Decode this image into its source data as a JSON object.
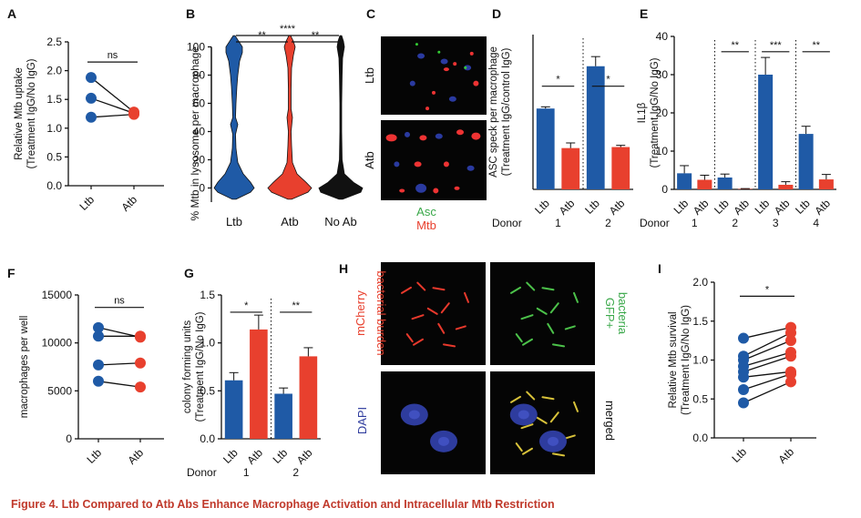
{
  "caption": "Figure 4. Ltb Compared to Atb Abs Enhance Macrophage Activation and Intracellular Mtb Restriction",
  "colors": {
    "ltb": "#1f5aa6",
    "atb": "#e8402e",
    "noab": "#111111",
    "green": "#3aa84a",
    "red": "#e8402e",
    "blue": "#2f3c9e"
  },
  "chart_data": [
    {
      "panel": "A",
      "type": "scatter",
      "ylabel": [
        "Relative Mtb uptake",
        "(Treatment IgG/No IgG)"
      ],
      "categories": [
        "Ltb",
        "Atb"
      ],
      "ylim": [
        0,
        2.5
      ],
      "yticks": [
        "0.0",
        "0.5",
        "1.0",
        "1.5",
        "2.0",
        "2.5"
      ],
      "pairs": [
        [
          1.88,
          1.28
        ],
        [
          1.52,
          1.26
        ],
        [
          1.19,
          1.24
        ]
      ],
      "significance": [
        {
          "label": "ns",
          "from": 0,
          "to": 1,
          "y": 2.15
        }
      ]
    },
    {
      "panel": "B",
      "type": "violin",
      "ylabel": "% Mtb in lysosome per macrophage",
      "categories": [
        "Ltb",
        "Atb",
        "No Ab"
      ],
      "ylim": [
        -10,
        110
      ],
      "yticks": [
        "0",
        "20",
        "40",
        "60",
        "80",
        "100"
      ],
      "significance": [
        {
          "label": "**",
          "from": 0,
          "to": 1,
          "y": 108
        },
        {
          "label": "**",
          "from": 1,
          "to": 2,
          "y": 108
        },
        {
          "label": "****",
          "from": 0,
          "to": 2,
          "y": 114
        }
      ]
    },
    {
      "panel": "C",
      "type": "image",
      "rows": [
        "Ltb",
        "Atb"
      ],
      "legend": [
        "Asc",
        "Mtb"
      ]
    },
    {
      "panel": "D",
      "type": "bar",
      "ylabel": [
        "ASC speck per macrophage",
        "(Treatment IgG/control IgG)"
      ],
      "categories": [
        "Ltb",
        "Atb",
        "Ltb",
        "Atb"
      ],
      "donor_label": "Donor",
      "donors": [
        "1",
        "2"
      ],
      "ylim": [
        0,
        4.5
      ],
      "values": [
        2.35,
        1.2,
        3.58,
        1.23
      ],
      "errors": [
        0.05,
        0.15,
        0.28,
        0.05
      ],
      "significance": [
        {
          "label": "*",
          "from": 0,
          "to": 1,
          "y": 3.0
        },
        {
          "label": "*",
          "from": 2,
          "to": 3,
          "y": 3.0
        }
      ]
    },
    {
      "panel": "E",
      "type": "bar",
      "ylabel": [
        "IL1β",
        "(Treatment IgG/No IgG)"
      ],
      "categories": [
        "Ltb",
        "Atb",
        "Ltb",
        "Atb",
        "Ltb",
        "Atb",
        "Ltb",
        "Atb"
      ],
      "donor_label": "Donor",
      "donors": [
        "1",
        "2",
        "3",
        "4"
      ],
      "ylim": [
        0,
        40
      ],
      "yticks": [
        "0",
        "10",
        "20",
        "30",
        "40"
      ],
      "values": [
        4.2,
        2.5,
        3.1,
        0.1,
        30.0,
        1.2,
        14.5,
        2.6
      ],
      "errors": [
        2.0,
        1.2,
        0.9,
        0.1,
        4.5,
        0.8,
        2.0,
        1.3
      ],
      "significance": [
        {
          "label": "**",
          "from": 2,
          "to": 3,
          "y": 36
        },
        {
          "label": "***",
          "from": 4,
          "to": 5,
          "y": 36
        },
        {
          "label": "**",
          "from": 6,
          "to": 7,
          "y": 36
        }
      ]
    },
    {
      "panel": "F",
      "type": "scatter",
      "ylabel": "macrophages per well",
      "categories": [
        "Ltb",
        "Atb"
      ],
      "ylim": [
        0,
        15000
      ],
      "yticks": [
        "0",
        "5000",
        "10000",
        "15000"
      ],
      "pairs": [
        [
          11600,
          10600
        ],
        [
          10700,
          10700
        ],
        [
          7700,
          7900
        ],
        [
          6000,
          5400
        ]
      ],
      "significance": [
        {
          "label": "ns",
          "from": 0,
          "to": 1,
          "y": 13700
        }
      ]
    },
    {
      "panel": "G",
      "type": "bar",
      "ylabel": [
        "colony forming units",
        "(Treatment IgG/No IgG)"
      ],
      "categories": [
        "Ltb",
        "Atb",
        "Ltb",
        "Atb"
      ],
      "donor_label": "Donor",
      "donors": [
        "1",
        "2"
      ],
      "ylim": [
        0,
        1.5
      ],
      "yticks": [
        "0.0",
        "0.5",
        "1.0",
        "1.5"
      ],
      "values": [
        0.61,
        1.14,
        0.47,
        0.86
      ],
      "errors": [
        0.08,
        0.15,
        0.06,
        0.09
      ],
      "significance": [
        {
          "label": "*",
          "from": 0,
          "to": 1,
          "y": 1.32
        },
        {
          "label": "**",
          "from": 2,
          "to": 3,
          "y": 1.32
        }
      ]
    },
    {
      "panel": "H",
      "type": "image",
      "labels": [
        "mCherry",
        "bacterial burden",
        "GFP+",
        "bacteria",
        "DAPI",
        "merged"
      ]
    },
    {
      "panel": "I",
      "type": "scatter",
      "ylabel": [
        "Relative Mtb survival",
        "(Treatment IgG/No IgG)"
      ],
      "categories": [
        "Ltb",
        "Atb"
      ],
      "ylim": [
        0,
        2.0
      ],
      "yticks": [
        "0.0",
        "0.5",
        "1.0",
        "1.5",
        "2.0"
      ],
      "pairs": [
        [
          1.28,
          1.42
        ],
        [
          1.05,
          1.35
        ],
        [
          1.0,
          1.25
        ],
        [
          0.92,
          1.1
        ],
        [
          0.85,
          1.05
        ],
        [
          0.78,
          0.85
        ],
        [
          0.62,
          0.82
        ],
        [
          0.45,
          0.72
        ]
      ],
      "significance": [
        {
          "label": "*",
          "from": 0,
          "to": 1,
          "y": 1.82
        }
      ]
    }
  ]
}
